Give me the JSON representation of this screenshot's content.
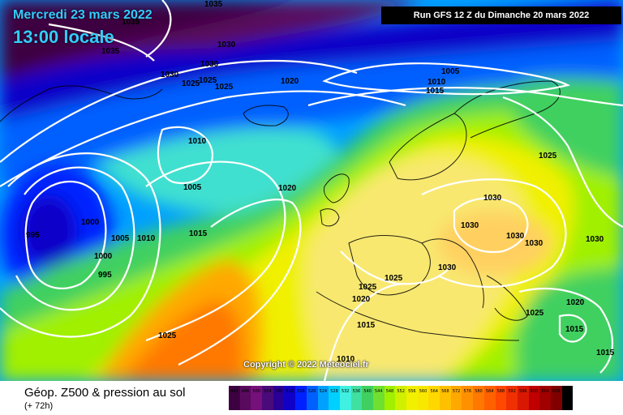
{
  "header": {
    "date": "Mercredi 23 mars 2022",
    "time": "13:00 locale",
    "run": "Run GFS 12 Z du Dimanche 20 mars 2022"
  },
  "footer": {
    "title": "Géop. Z500 & pression au sol",
    "lead": "(+ 72h)",
    "copyright": "Copyright © 2022 Meteociel.fr"
  },
  "legend": {
    "values": [
      "492",
      "496",
      "500",
      "504",
      "508",
      "512",
      "516",
      "520",
      "524",
      "528",
      "532",
      "536",
      "540",
      "544",
      "548",
      "552",
      "556",
      "560",
      "564",
      "568",
      "572",
      "576",
      "580",
      "584",
      "588",
      "592",
      "596",
      "600",
      "604",
      "608",
      "612"
    ],
    "colors": [
      "#3d0040",
      "#5a0a5e",
      "#76107a",
      "#4b0a7a",
      "#2a0096",
      "#1000c8",
      "#0020ff",
      "#0060ff",
      "#00a0ff",
      "#00d0ff",
      "#40f0e0",
      "#40e0a0",
      "#40d060",
      "#70e030",
      "#a0f000",
      "#d0f000",
      "#f0f000",
      "#f8e800",
      "#ffd800",
      "#ffc000",
      "#ffa800",
      "#ff9000",
      "#ff7800",
      "#ff6000",
      "#ff4800",
      "#f03000",
      "#d81800",
      "#c00000",
      "#a00000",
      "#800000",
      "#000000"
    ]
  },
  "isobar_labels": [
    {
      "text": "1035"
    },
    {
      "text": "1035"
    },
    {
      "text": "1035"
    },
    {
      "text": "1030"
    },
    {
      "text": "1030"
    },
    {
      "text": "1030"
    },
    {
      "text": "1025"
    },
    {
      "text": "1025"
    },
    {
      "text": "1025"
    },
    {
      "text": "1020"
    },
    {
      "text": "1005"
    },
    {
      "text": "1010"
    },
    {
      "text": "1015"
    },
    {
      "text": "1010"
    },
    {
      "text": "1005"
    },
    {
      "text": "1020"
    },
    {
      "text": "1000"
    },
    {
      "text": "995"
    },
    {
      "text": "1005"
    },
    {
      "text": "1010"
    },
    {
      "text": "1000"
    },
    {
      "text": "995"
    },
    {
      "text": "1015"
    },
    {
      "text": "1025"
    },
    {
      "text": "1025"
    },
    {
      "text": "1030"
    },
    {
      "text": "1030"
    },
    {
      "text": "1030"
    },
    {
      "text": "1030"
    },
    {
      "text": "1030"
    },
    {
      "text": "1030"
    },
    {
      "text": "1025"
    },
    {
      "text": "1025"
    },
    {
      "text": "1020"
    },
    {
      "text": "1015"
    },
    {
      "text": "1025"
    },
    {
      "text": "1020"
    },
    {
      "text": "1015"
    },
    {
      "text": "1015"
    },
    {
      "text": "1010"
    }
  ]
}
